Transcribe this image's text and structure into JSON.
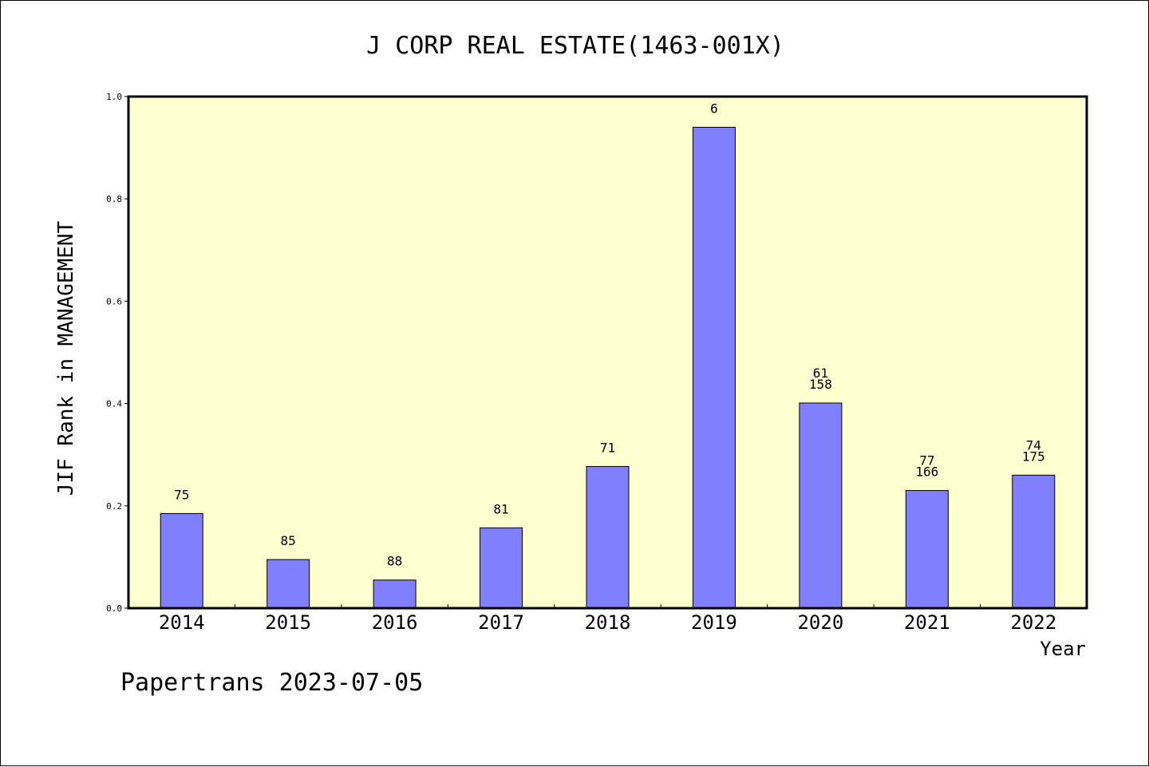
{
  "chart_data": {
    "type": "bar",
    "title": "J CORP REAL ESTATE(1463-001X)",
    "xlabel": "Year",
    "ylabel": "JIF Rank in MANAGEMENT",
    "ylim": [
      0,
      1.0
    ],
    "yticks": [
      "0.0",
      "0.2",
      "0.4",
      "0.6",
      "0.8",
      "1.0"
    ],
    "categories": [
      "2014",
      "2015",
      "2016",
      "2017",
      "2018",
      "2019",
      "2020",
      "2021",
      "2022"
    ],
    "values": [
      0.185,
      0.095,
      0.055,
      0.157,
      0.277,
      0.94,
      0.401,
      0.23,
      0.26
    ],
    "bar_labels": [
      [
        "75"
      ],
      [
        "85"
      ],
      [
        "88"
      ],
      [
        "81"
      ],
      [
        "71"
      ],
      [
        "6"
      ],
      [
        "61",
        "158"
      ],
      [
        "77",
        "166"
      ],
      [
        "74",
        "175"
      ]
    ],
    "plot_background": "#ffffd0",
    "bar_color": "#8080ff",
    "grid": false,
    "legend": "none"
  },
  "footer": "Papertrans 2023-07-05"
}
